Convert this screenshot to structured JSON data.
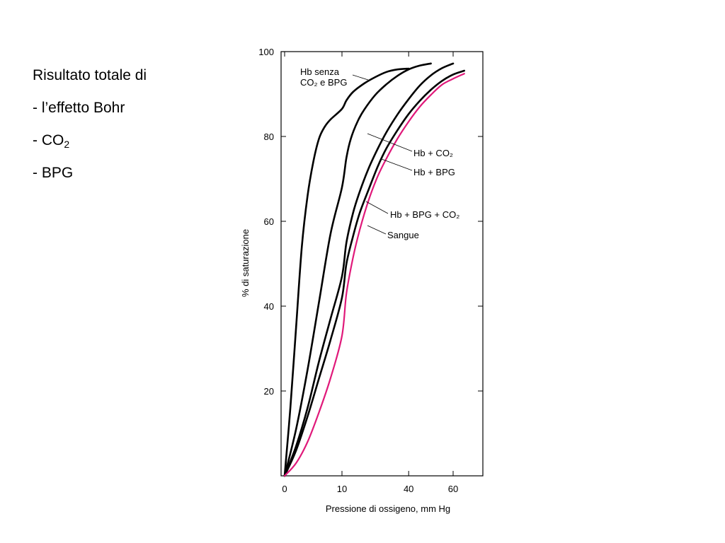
{
  "slide": {
    "bullets": [
      {
        "main": "Risultato totale di",
        "sub": ""
      },
      {
        "main": "- l’effetto Bohr",
        "sub": ""
      },
      {
        "main": "- CO",
        "sub": "2"
      },
      {
        "main": "- BPG",
        "sub": ""
      }
    ]
  },
  "chart_data": {
    "type": "line",
    "title": "",
    "xlabel": "Pressione di ossigeno, mm Hg",
    "ylabel": "% di saturazione",
    "xticks": [
      0,
      10,
      40,
      60
    ],
    "yticks": [
      20,
      40,
      60,
      80,
      100
    ],
    "ylim": [
      0,
      100
    ],
    "grid": false,
    "series": [
      {
        "name": "Hb senza CO₂ e BPG",
        "label_lines": [
          "Hb senza",
          "CO₂ e BPG"
        ],
        "color": "#000000",
        "x": [
          0,
          1,
          2,
          3,
          4,
          5,
          6,
          7,
          8,
          10,
          12,
          15,
          20,
          25,
          30,
          35,
          40
        ],
        "y": [
          0,
          16,
          35,
          54,
          66,
          74,
          79.5,
          82.3,
          84,
          86.5,
          88.5,
          90.5,
          92.5,
          94,
          95.2,
          95.8,
          96
        ]
      },
      {
        "name": "Hb + CO₂",
        "color": "#000000",
        "x": [
          0,
          2,
          4,
          6,
          8,
          10,
          12,
          14,
          17,
          20,
          25,
          30,
          35,
          40,
          45,
          50
        ],
        "y": [
          0,
          11,
          25,
          41,
          57,
          68,
          75,
          79.5,
          83.5,
          86.3,
          89.8,
          92.3,
          94.3,
          95.8,
          96.7,
          97.2
        ]
      },
      {
        "name": "Hb + BPG",
        "color": "#000000",
        "x": [
          0,
          2,
          4,
          6,
          8,
          10,
          12,
          15,
          18,
          22,
          26,
          30,
          35,
          40,
          45,
          50,
          55,
          60
        ],
        "y": [
          0,
          7,
          16,
          27,
          37,
          47,
          55,
          62,
          67,
          72.5,
          77,
          81,
          85.2,
          88.8,
          92,
          94.4,
          96.1,
          97.2
        ]
      },
      {
        "name": "Hb + BPG + CO₂",
        "color": "#000000",
        "x": [
          0,
          2,
          4,
          6,
          8,
          10,
          12,
          15,
          18,
          22,
          26,
          30,
          35,
          40,
          45,
          50,
          55,
          60,
          65
        ],
        "y": [
          0,
          6,
          14,
          23,
          32,
          42,
          50,
          56.5,
          62,
          67.5,
          72.8,
          77.2,
          81.5,
          85.3,
          88.4,
          91,
          93.1,
          94.6,
          95.5
        ]
      },
      {
        "name": "Sangue",
        "color": "#e0197a",
        "x": [
          0,
          2,
          4,
          6,
          8,
          10,
          12,
          15,
          18,
          22,
          26,
          30,
          35,
          40,
          45,
          50,
          55,
          60,
          65
        ],
        "y": [
          0,
          3,
          8,
          15,
          23,
          33,
          43,
          51.5,
          58,
          65,
          70.5,
          74.8,
          79.5,
          83.5,
          87,
          89.8,
          92.2,
          93.6,
          94.8
        ]
      }
    ],
    "axis_color": "#000000"
  }
}
